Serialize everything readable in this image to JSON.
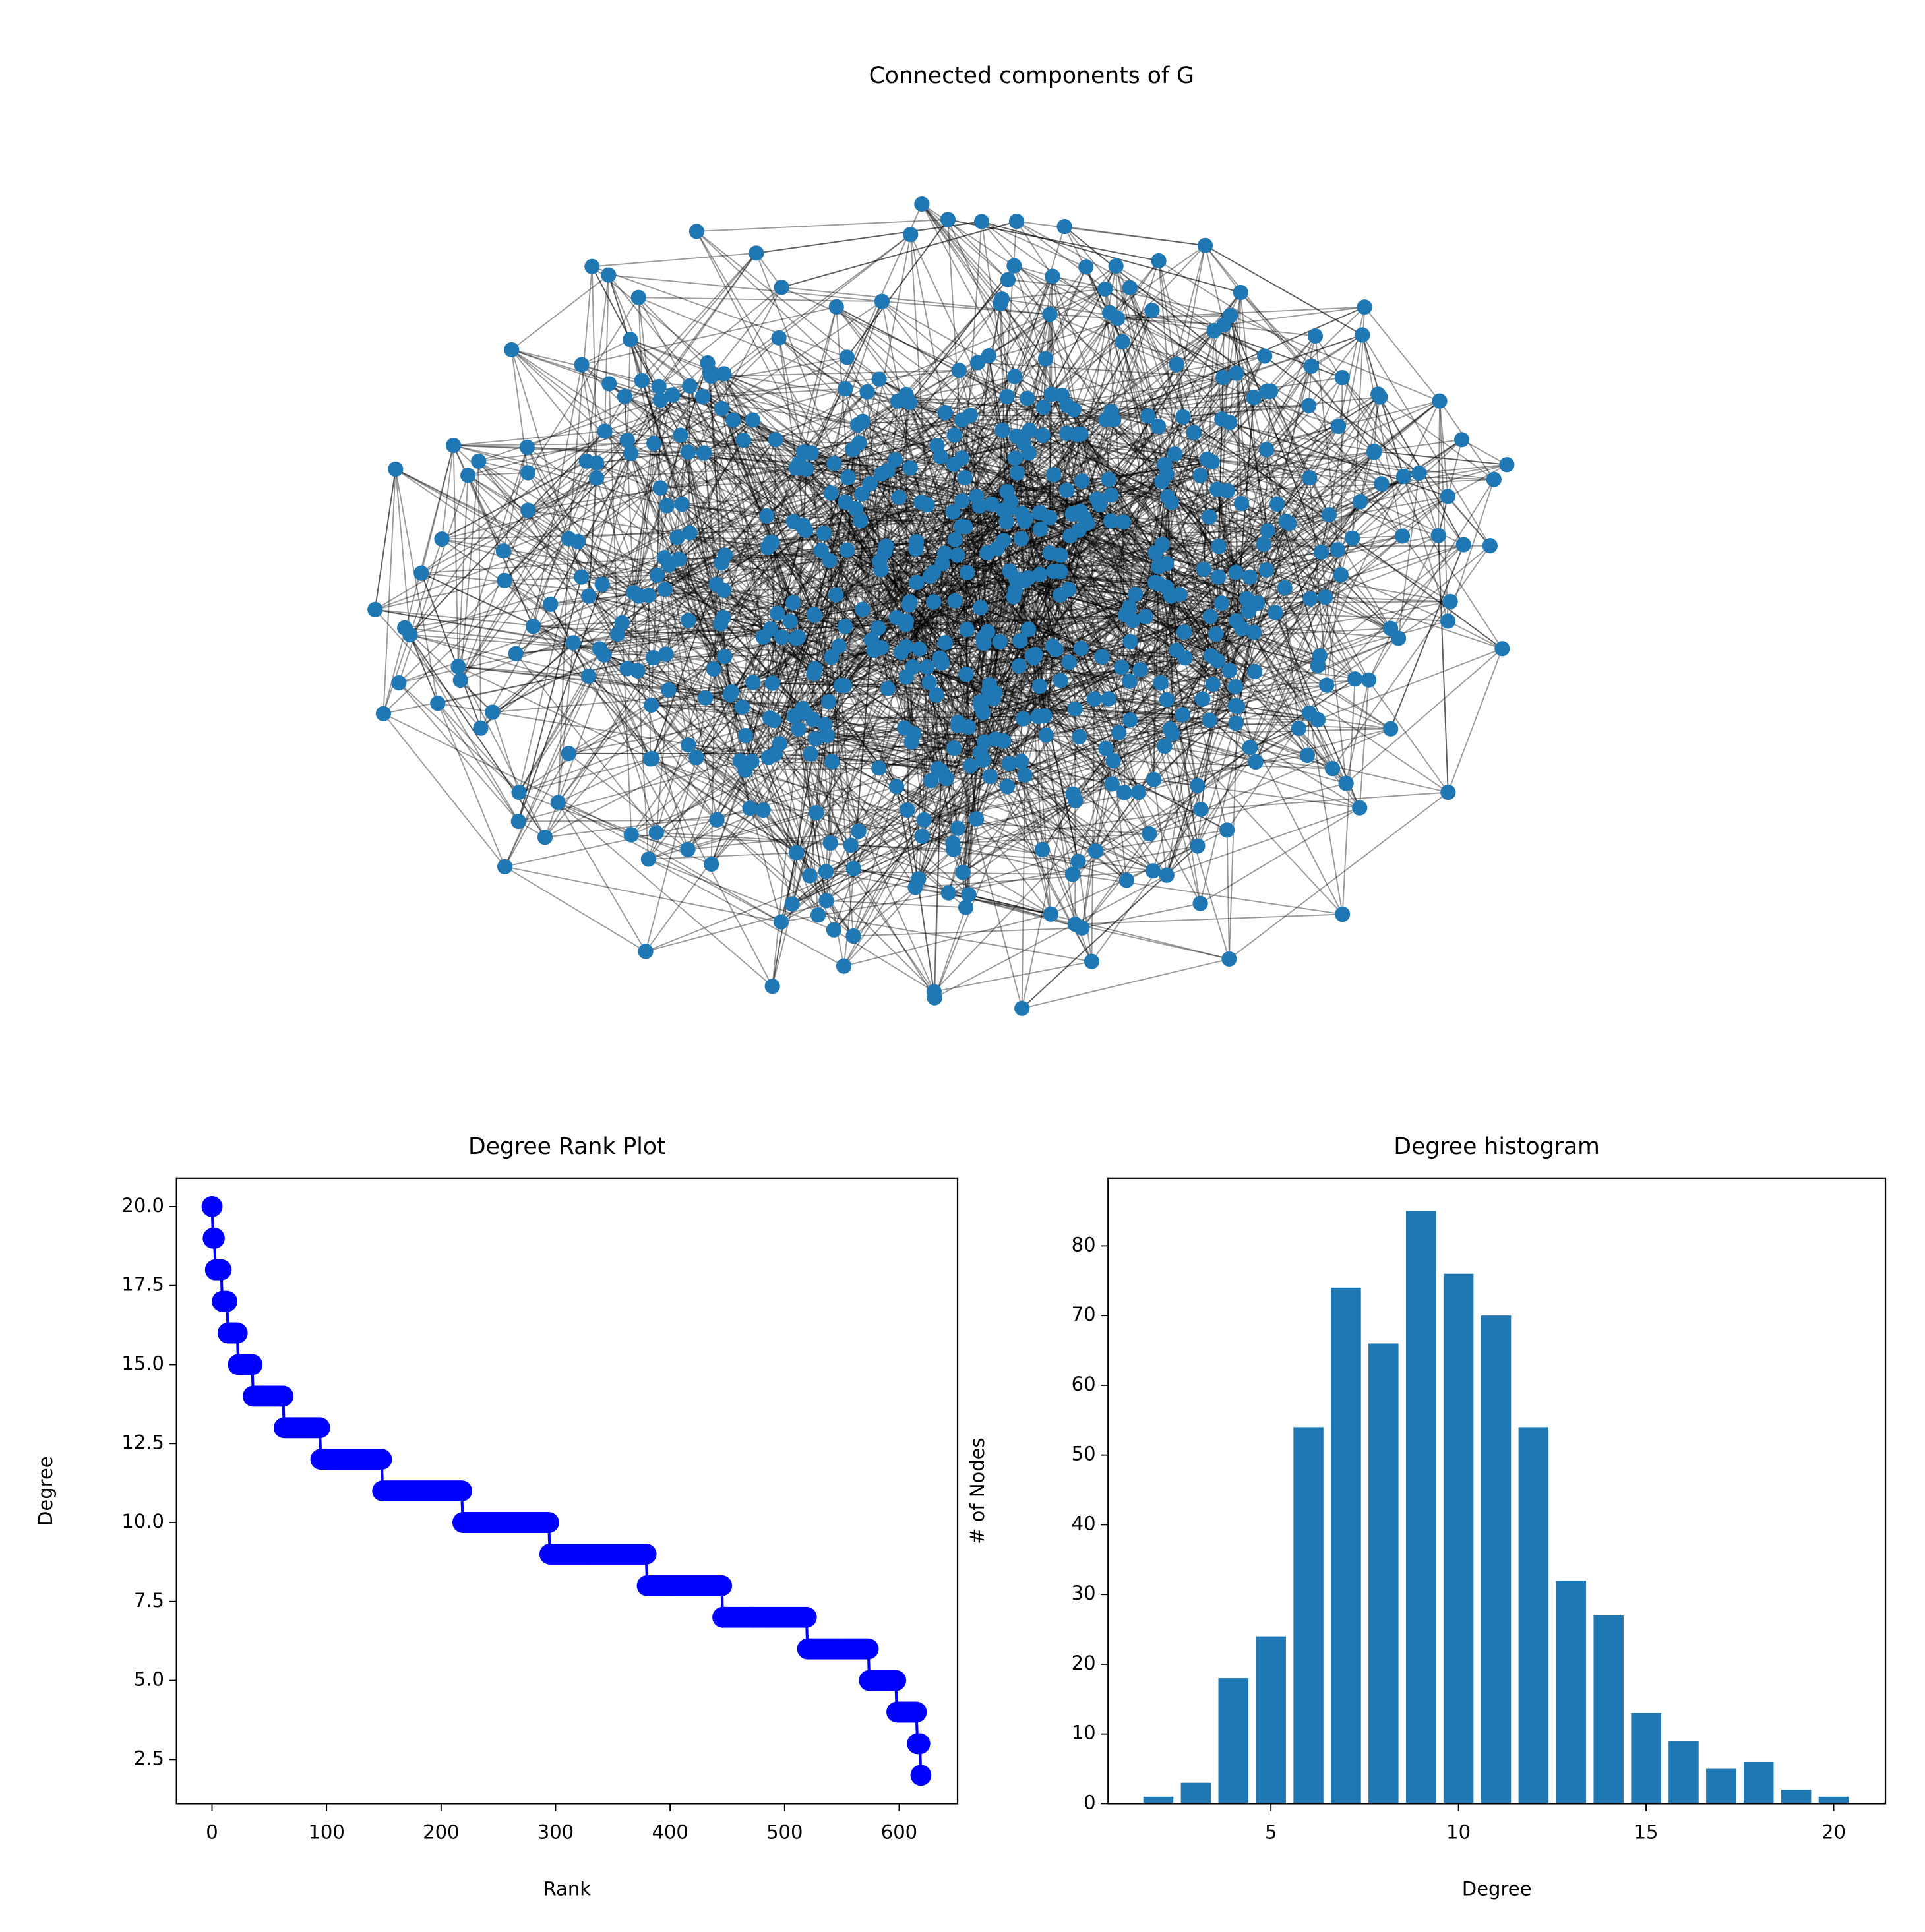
{
  "chart_data": [
    {
      "type": "network",
      "title": "Connected components of G"
    },
    {
      "type": "line",
      "title": "Degree Rank Plot",
      "xlabel": "Rank",
      "ylabel": "Degree",
      "color": "#0000ff",
      "marker": "o",
      "values": [
        20,
        19,
        19,
        18,
        18,
        18,
        18,
        18,
        18,
        17,
        17,
        17,
        17,
        17,
        16,
        16,
        16,
        16,
        16,
        16,
        16,
        16,
        16,
        15,
        15,
        15,
        15,
        15,
        15,
        15,
        15,
        15,
        15,
        15,
        15,
        15,
        14,
        14,
        14,
        14,
        14,
        14,
        14,
        14,
        14,
        14,
        14,
        14,
        14,
        14,
        14,
        14,
        14,
        14,
        14,
        14,
        14,
        14,
        14,
        14,
        14,
        14,
        14,
        13,
        13,
        13,
        13,
        13,
        13,
        13,
        13,
        13,
        13,
        13,
        13,
        13,
        13,
        13,
        13,
        13,
        13,
        13,
        13,
        13,
        13,
        13,
        13,
        13,
        13,
        13,
        13,
        13,
        13,
        13,
        13,
        12,
        12,
        12,
        12,
        12,
        12,
        12,
        12,
        12,
        12,
        12,
        12,
        12,
        12,
        12,
        12,
        12,
        12,
        12,
        12,
        12,
        12,
        12,
        12,
        12,
        12,
        12,
        12,
        12,
        12,
        12,
        12,
        12,
        12,
        12,
        12,
        12,
        12,
        12,
        12,
        12,
        12,
        12,
        12,
        12,
        12,
        12,
        12,
        12,
        12,
        12,
        12,
        12,
        12,
        11,
        11,
        11,
        11,
        11,
        11,
        11,
        11,
        11,
        11,
        11,
        11,
        11,
        11,
        11,
        11,
        11,
        11,
        11,
        11,
        11,
        11,
        11,
        11,
        11,
        11,
        11,
        11,
        11,
        11,
        11,
        11,
        11,
        11,
        11,
        11,
        11,
        11,
        11,
        11,
        11,
        11,
        11,
        11,
        11,
        11,
        11,
        11,
        11,
        11,
        11,
        11,
        11,
        11,
        11,
        11,
        11,
        11,
        11,
        11,
        11,
        11,
        11,
        11,
        11,
        11,
        11,
        11,
        11,
        11,
        10,
        10,
        10,
        10,
        10,
        10,
        10,
        10,
        10,
        10,
        10,
        10,
        10,
        10,
        10,
        10,
        10,
        10,
        10,
        10,
        10,
        10,
        10,
        10,
        10,
        10,
        10,
        10,
        10,
        10,
        10,
        10,
        10,
        10,
        10,
        10,
        10,
        10,
        10,
        10,
        10,
        10,
        10,
        10,
        10,
        10,
        10,
        10,
        10,
        10,
        10,
        10,
        10,
        10,
        10,
        10,
        10,
        10,
        10,
        10,
        10,
        10,
        10,
        10,
        10,
        10,
        10,
        10,
        10,
        10,
        10,
        10,
        10,
        10,
        10,
        10,
        9,
        9,
        9,
        9,
        9,
        9,
        9,
        9,
        9,
        9,
        9,
        9,
        9,
        9,
        9,
        9,
        9,
        9,
        9,
        9,
        9,
        9,
        9,
        9,
        9,
        9,
        9,
        9,
        9,
        9,
        9,
        9,
        9,
        9,
        9,
        9,
        9,
        9,
        9,
        9,
        9,
        9,
        9,
        9,
        9,
        9,
        9,
        9,
        9,
        9,
        9,
        9,
        9,
        9,
        9,
        9,
        9,
        9,
        9,
        9,
        9,
        9,
        9,
        9,
        9,
        9,
        9,
        9,
        9,
        9,
        9,
        9,
        9,
        9,
        9,
        9,
        9,
        9,
        9,
        9,
        9,
        9,
        9,
        9,
        9,
        8,
        8,
        8,
        8,
        8,
        8,
        8,
        8,
        8,
        8,
        8,
        8,
        8,
        8,
        8,
        8,
        8,
        8,
        8,
        8,
        8,
        8,
        8,
        8,
        8,
        8,
        8,
        8,
        8,
        8,
        8,
        8,
        8,
        8,
        8,
        8,
        8,
        8,
        8,
        8,
        8,
        8,
        8,
        8,
        8,
        8,
        8,
        8,
        8,
        8,
        8,
        8,
        8,
        8,
        8,
        8,
        8,
        8,
        8,
        8,
        8,
        8,
        8,
        8,
        8,
        8,
        7,
        7,
        7,
        7,
        7,
        7,
        7,
        7,
        7,
        7,
        7,
        7,
        7,
        7,
        7,
        7,
        7,
        7,
        7,
        7,
        7,
        7,
        7,
        7,
        7,
        7,
        7,
        7,
        7,
        7,
        7,
        7,
        7,
        7,
        7,
        7,
        7,
        7,
        7,
        7,
        7,
        7,
        7,
        7,
        7,
        7,
        7,
        7,
        7,
        7,
        7,
        7,
        7,
        7,
        7,
        7,
        7,
        7,
        7,
        7,
        7,
        7,
        7,
        7,
        7,
        7,
        7,
        7,
        7,
        7,
        7,
        7,
        7,
        7,
        6,
        6,
        6,
        6,
        6,
        6,
        6,
        6,
        6,
        6,
        6,
        6,
        6,
        6,
        6,
        6,
        6,
        6,
        6,
        6,
        6,
        6,
        6,
        6,
        6,
        6,
        6,
        6,
        6,
        6,
        6,
        6,
        6,
        6,
        6,
        6,
        6,
        6,
        6,
        6,
        6,
        6,
        6,
        6,
        6,
        6,
        6,
        6,
        6,
        6,
        6,
        6,
        6,
        6,
        5,
        5,
        5,
        5,
        5,
        5,
        5,
        5,
        5,
        5,
        5,
        5,
        5,
        5,
        5,
        5,
        5,
        5,
        5,
        5,
        5,
        5,
        5,
        5,
        4,
        4,
        4,
        4,
        4,
        4,
        4,
        4,
        4,
        4,
        4,
        4,
        4,
        4,
        4,
        4,
        4,
        4,
        3,
        3,
        3,
        2
      ],
      "xlim": [
        -31,
        651
      ],
      "ylim": [
        1.1,
        20.9
      ],
      "xticks": [
        0,
        100,
        200,
        300,
        400,
        500,
        600
      ],
      "yticks": [
        2.5,
        {
          "value": 5,
          "label": "5.0"
        },
        7.5,
        {
          "value": 10,
          "label": "10.0"
        },
        12.5,
        {
          "value": 15,
          "label": "15.0"
        },
        17.5,
        {
          "value": 20,
          "label": "20.0"
        }
      ]
    },
    {
      "type": "bar",
      "title": "Degree histogram",
      "xlabel": "Degree",
      "ylabel": "# of Nodes",
      "color": "#1f77b4",
      "x": [
        2,
        3,
        4,
        5,
        6,
        7,
        8,
        9,
        10,
        11,
        12,
        13,
        14,
        15,
        16,
        17,
        18,
        19,
        20
      ],
      "values": [
        1,
        3,
        18,
        24,
        54,
        74,
        66,
        85,
        76,
        70,
        54,
        32,
        27,
        13,
        9,
        5,
        6,
        2,
        1
      ],
      "xlim": [
        0.66,
        21.38
      ],
      "ylim": [
        0,
        89.7
      ],
      "xticks": [
        5,
        10,
        15,
        20
      ],
      "yticks": [
        0,
        10,
        20,
        30,
        40,
        50,
        60,
        70,
        80
      ]
    }
  ]
}
